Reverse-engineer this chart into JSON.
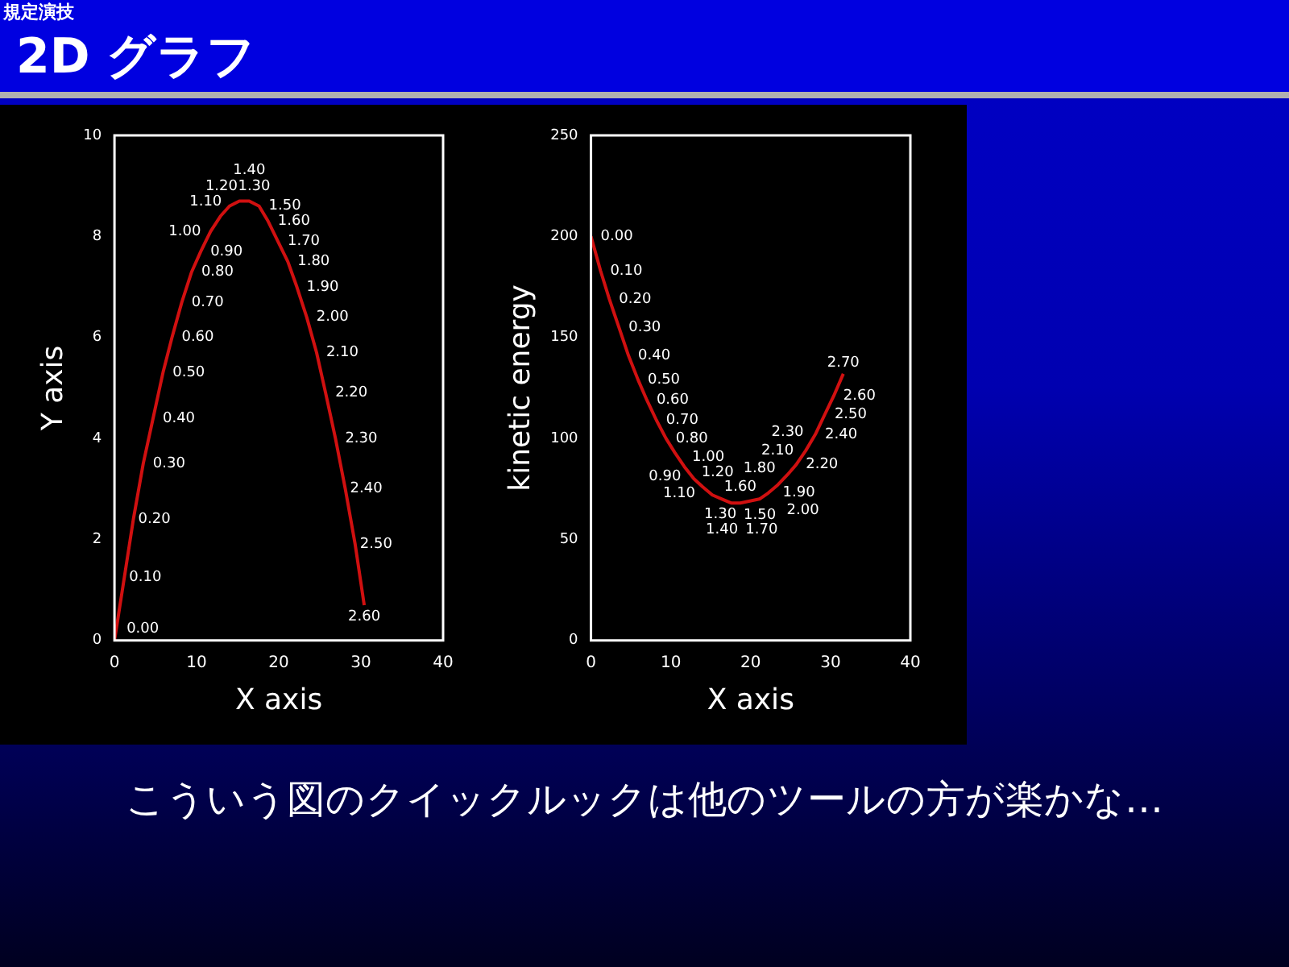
{
  "chart_data": [
    {
      "type": "line",
      "title": "2D グラフ",
      "subtitle": "規定演技",
      "xlabel": "X axis",
      "ylabel": "Y axis",
      "xlim": [
        0,
        40
      ],
      "xticks": [
        0,
        10,
        20,
        30,
        40
      ],
      "ylim": [
        0,
        10
      ],
      "yticks": [
        0,
        2,
        4,
        6,
        8,
        10
      ],
      "grid": false,
      "legend": false,
      "x": [
        0,
        1.2,
        2.3,
        3.5,
        4.7,
        5.9,
        7.0,
        8.2,
        9.4,
        10.5,
        11.7,
        12.9,
        14.0,
        15.2,
        16.4,
        17.6,
        18.7,
        19.9,
        21.1,
        22.2,
        23.4,
        24.6,
        25.7,
        26.9,
        28.1,
        29.3,
        30.4
      ],
      "series": [
        {
          "color": "#d01010",
          "values": [
            0,
            1.25,
            2.4,
            3.5,
            4.4,
            5.3,
            6.0,
            6.7,
            7.3,
            7.7,
            8.1,
            8.4,
            8.6,
            8.7,
            8.7,
            8.6,
            8.3,
            7.9,
            7.5,
            7.0,
            6.4,
            5.7,
            4.9,
            4.0,
            3.0,
            1.9,
            0.7
          ]
        }
      ],
      "annotations": [
        {
          "text": "0.00",
          "x": 0,
          "y": 0
        },
        {
          "text": "0.10",
          "x": 1.2,
          "y": 1.25
        },
        {
          "text": "0.20",
          "x": 2.3,
          "y": 2.4
        },
        {
          "text": "0.30",
          "x": 3.5,
          "y": 3.5
        },
        {
          "text": "0.40",
          "x": 4.7,
          "y": 4.4
        },
        {
          "text": "0.50",
          "x": 5.9,
          "y": 5.3
        },
        {
          "text": "0.60",
          "x": 7.0,
          "y": 6.0
        },
        {
          "text": "0.70",
          "x": 8.2,
          "y": 6.7
        },
        {
          "text": "0.80",
          "x": 9.4,
          "y": 7.3
        },
        {
          "text": "0.90",
          "x": 10.5,
          "y": 7.7
        },
        {
          "text": "1.00",
          "x": 11.7,
          "y": 8.1
        },
        {
          "text": "1.10",
          "x": 12.9,
          "y": 8.4
        },
        {
          "text": "1.20",
          "x": 14.0,
          "y": 8.6
        },
        {
          "text": "1.30",
          "x": 15.2,
          "y": 8.7
        },
        {
          "text": "1.40",
          "x": 16.4,
          "y": 8.7
        },
        {
          "text": "1.50",
          "x": 17.6,
          "y": 8.6
        },
        {
          "text": "1.60",
          "x": 18.7,
          "y": 8.3
        },
        {
          "text": "1.70",
          "x": 19.9,
          "y": 7.9
        },
        {
          "text": "1.80",
          "x": 21.1,
          "y": 7.5
        },
        {
          "text": "1.90",
          "x": 22.2,
          "y": 7.0
        },
        {
          "text": "2.00",
          "x": 23.4,
          "y": 6.4
        },
        {
          "text": "2.10",
          "x": 24.6,
          "y": 5.7
        },
        {
          "text": "2.20",
          "x": 25.7,
          "y": 4.9
        },
        {
          "text": "2.30",
          "x": 26.9,
          "y": 4.0
        },
        {
          "text": "2.40",
          "x": 28.1,
          "y": 3.0
        },
        {
          "text": "2.50",
          "x": 29.3,
          "y": 1.9
        },
        {
          "text": "2.60",
          "x": 30.4,
          "y": 0.7
        }
      ]
    },
    {
      "type": "line",
      "xlabel": "X axis",
      "ylabel": "kinetic energy",
      "xlim": [
        0,
        40
      ],
      "xticks": [
        0,
        10,
        20,
        30,
        40
      ],
      "ylim": [
        0,
        250
      ],
      "yticks": [
        0,
        50,
        100,
        150,
        200,
        250
      ],
      "grid": false,
      "legend": false,
      "x": [
        0,
        1.2,
        2.3,
        3.5,
        4.7,
        5.9,
        7.0,
        8.2,
        9.4,
        10.5,
        11.7,
        12.9,
        14.0,
        15.2,
        16.4,
        17.6,
        18.7,
        19.9,
        21.1,
        22.2,
        23.4,
        24.6,
        25.7,
        26.9,
        28.1,
        29.3,
        30.4,
        31.6
      ],
      "series": [
        {
          "color": "#d01010",
          "values": [
            200,
            183,
            169,
            155,
            141,
            129,
            119,
            109,
            100,
            93,
            86,
            80,
            76,
            72,
            70,
            68,
            68,
            69,
            70,
            73,
            77,
            82,
            87,
            94,
            102,
            112,
            121,
            132
          ]
        }
      ],
      "annotations": [
        {
          "text": "0.00",
          "x": 0,
          "y": 200
        },
        {
          "text": "0.10",
          "x": 1.2,
          "y": 183
        },
        {
          "text": "0.20",
          "x": 2.3,
          "y": 169
        },
        {
          "text": "0.30",
          "x": 3.5,
          "y": 155
        },
        {
          "text": "0.40",
          "x": 4.7,
          "y": 141
        },
        {
          "text": "0.50",
          "x": 5.9,
          "y": 129
        },
        {
          "text": "0.60",
          "x": 7.0,
          "y": 119
        },
        {
          "text": "0.70",
          "x": 8.2,
          "y": 109
        },
        {
          "text": "0.80",
          "x": 9.4,
          "y": 100
        },
        {
          "text": "0.90",
          "x": 10.5,
          "y": 93
        },
        {
          "text": "1.00",
          "x": 11.7,
          "y": 86
        },
        {
          "text": "1.10",
          "x": 12.9,
          "y": 80
        },
        {
          "text": "1.20",
          "x": 14.0,
          "y": 76
        },
        {
          "text": "1.30",
          "x": 15.2,
          "y": 72
        },
        {
          "text": "1.40",
          "x": 16.4,
          "y": 70
        },
        {
          "text": "1.50",
          "x": 17.6,
          "y": 68
        },
        {
          "text": "1.60",
          "x": 18.7,
          "y": 68
        },
        {
          "text": "1.70",
          "x": 19.9,
          "y": 69
        },
        {
          "text": "1.80",
          "x": 21.1,
          "y": 70
        },
        {
          "text": "1.90",
          "x": 22.2,
          "y": 73
        },
        {
          "text": "2.00",
          "x": 23.4,
          "y": 77
        },
        {
          "text": "2.10",
          "x": 24.6,
          "y": 82
        },
        {
          "text": "2.20",
          "x": 25.7,
          "y": 87
        },
        {
          "text": "2.30",
          "x": 26.9,
          "y": 94
        },
        {
          "text": "2.40",
          "x": 28.1,
          "y": 102
        },
        {
          "text": "2.50",
          "x": 29.3,
          "y": 112
        },
        {
          "text": "2.60",
          "x": 30.4,
          "y": 121
        },
        {
          "text": "2.70",
          "x": 31.6,
          "y": 132
        },
        "こういう図のクイックルックは他のツールの方が楽かな…"
      ]
    }
  ]
}
